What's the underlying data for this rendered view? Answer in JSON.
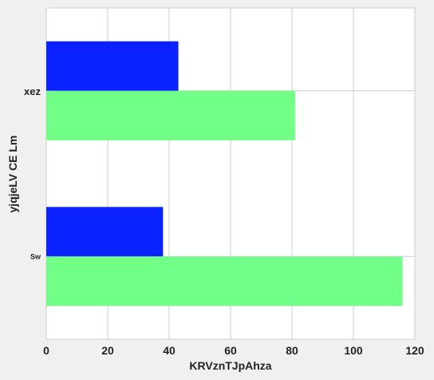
{
  "chart_data": {
    "type": "bar",
    "orientation": "horizontal",
    "categories": [
      "xez",
      "Sw"
    ],
    "series": [
      {
        "values": [
          43,
          38
        ],
        "color": "#0a22ff"
      },
      {
        "values": [
          81,
          116
        ],
        "color": "#72ff88"
      }
    ],
    "xlabel": "KRVznTJpAhza",
    "ylabel": "yjqjeLV CE Lm",
    "xlim": [
      0,
      120
    ],
    "xticks": [
      "0",
      "20",
      "40",
      "60",
      "80",
      "100",
      "120"
    ],
    "grid": true,
    "legend": "none"
  }
}
